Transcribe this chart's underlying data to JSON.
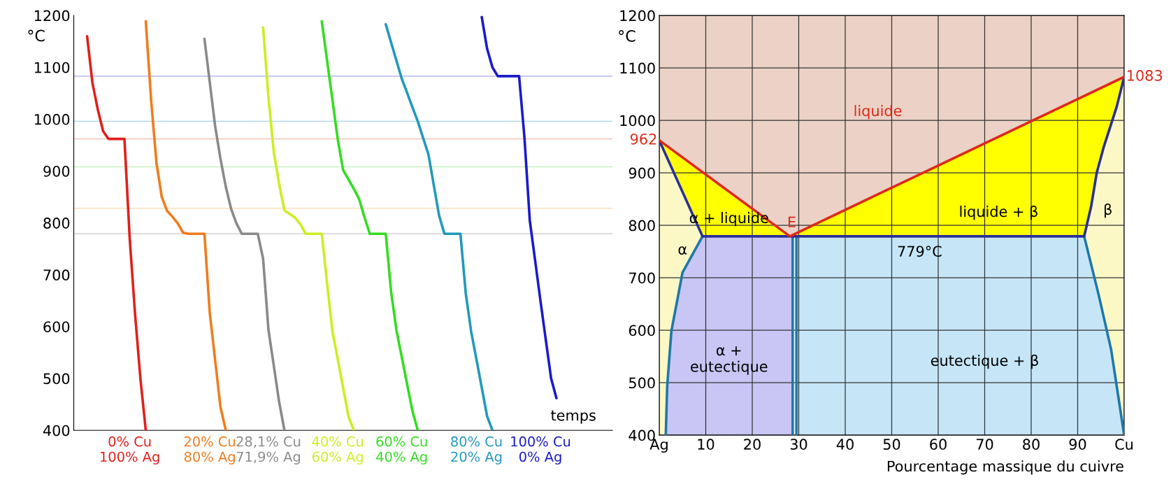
{
  "chart_data": [
    {
      "type": "line",
      "xlabel": "temps",
      "ylabel": "°C",
      "ylim": [
        400,
        1200
      ],
      "grid": false,
      "categories": [
        null,
        null,
        null,
        null,
        null,
        null,
        null,
        null,
        null,
        null,
        null,
        null,
        null,
        null,
        null,
        null,
        null,
        null,
        null,
        null,
        null,
        null,
        null,
        null,
        null,
        null,
        null,
        null,
        null,
        null,
        null,
        null,
        null,
        null,
        null,
        null,
        null,
        null,
        null,
        null,
        null,
        null,
        null,
        null,
        null,
        null,
        null,
        null,
        null,
        null,
        null,
        null,
        null,
        null,
        null,
        null,
        null,
        null,
        null,
        null,
        null,
        null,
        null,
        null,
        null,
        null,
        null,
        null,
        null,
        null,
        null,
        null,
        null,
        null,
        null,
        null,
        null,
        null,
        null,
        null,
        null,
        null,
        null,
        null,
        null,
        null,
        null,
        null,
        null,
        null,
        null,
        null,
        null,
        null,
        null,
        null,
        null,
        null,
        null,
        null,
        null
      ],
      "yticks": [
        400,
        500,
        600,
        700,
        800,
        900,
        1000,
        1100,
        1200
      ],
      "series": [
        {
          "name": "0% Cu\n100% Ag",
          "color": "#e0201b",
          "values": [
            null,
            null,
            1160,
            1070,
            1019,
            977,
            962,
            962,
            962,
            962,
            768,
            623,
            499,
            400,
            null,
            null,
            null,
            null,
            null,
            null,
            null,
            null,
            null,
            null,
            null,
            null,
            null,
            null,
            null,
            null,
            null,
            null,
            null,
            null,
            null,
            null,
            null,
            null,
            null,
            null,
            null,
            null,
            null,
            null,
            null,
            null,
            null,
            null,
            null,
            null,
            null,
            null,
            null,
            null,
            null,
            null,
            null,
            null,
            null,
            null,
            null,
            null,
            null,
            null,
            null,
            null,
            null,
            null,
            null,
            null,
            null,
            null,
            null,
            null,
            null,
            null,
            null,
            null,
            null,
            null,
            null,
            null,
            null,
            null,
            null,
            null,
            null,
            null,
            null,
            null,
            null,
            null,
            null,
            null,
            null,
            null,
            null,
            null,
            null,
            null,
            null
          ]
        },
        {
          "name": "20% Cu\n80% Ag",
          "color": "#f07c1c",
          "values": [
            null,
            null,
            null,
            null,
            null,
            null,
            null,
            null,
            null,
            null,
            null,
            null,
            null,
            1189,
            1037,
            916,
            850,
            823,
            812,
            799,
            781,
            779,
            779,
            779,
            779,
            626,
            536,
            445,
            400,
            null,
            null,
            null,
            null,
            null,
            null,
            null,
            null,
            null,
            null,
            null,
            null,
            null,
            null,
            null,
            null,
            null,
            null,
            null,
            null,
            null,
            null,
            null,
            null,
            null,
            null,
            null,
            null,
            null,
            null,
            null,
            null,
            null,
            null,
            null,
            null,
            null,
            null,
            null,
            null,
            null,
            null,
            null,
            null,
            null,
            null,
            null,
            null,
            null,
            null,
            null,
            null,
            null,
            null,
            null,
            null,
            null,
            null,
            null,
            null,
            null,
            null,
            null,
            null,
            null,
            null,
            null,
            null,
            null,
            null,
            null,
            null
          ]
        },
        {
          "name": "28,1% Cu\n71,9% Ag",
          "color": "#8a8a8a",
          "values": [
            null,
            null,
            null,
            null,
            null,
            null,
            null,
            null,
            null,
            null,
            null,
            null,
            null,
            null,
            null,
            null,
            null,
            null,
            null,
            null,
            null,
            null,
            null,
            null,
            1155,
            1071,
            987,
            924,
            870,
            827,
            799,
            779,
            779,
            779,
            779,
            731,
            594,
            525,
            455,
            400,
            null,
            null,
            null,
            null,
            null,
            null,
            null,
            null,
            null,
            null,
            null,
            null,
            null,
            null,
            null,
            null,
            null,
            null,
            null,
            null,
            null,
            null,
            null,
            null,
            null,
            null,
            null,
            null,
            null,
            null,
            null,
            null,
            null,
            null,
            null,
            null,
            null,
            null,
            null,
            null,
            null,
            null,
            null,
            null,
            null,
            null,
            null,
            null,
            null,
            null,
            null,
            null,
            null,
            null,
            null,
            null,
            null,
            null,
            null,
            null,
            null
          ]
        },
        {
          "name": "40% Cu\n60% Ag",
          "color": "#ccee22",
          "values": [
            null,
            null,
            null,
            null,
            null,
            null,
            null,
            null,
            null,
            null,
            null,
            null,
            null,
            null,
            null,
            null,
            null,
            null,
            null,
            null,
            null,
            null,
            null,
            null,
            null,
            null,
            null,
            null,
            null,
            null,
            null,
            null,
            null,
            null,
            null,
            1177,
            1042,
            937,
            875,
            824,
            817,
            810,
            797,
            779,
            779,
            779,
            779,
            683,
            591,
            537,
            482,
            427,
            400,
            null,
            null,
            null,
            null,
            null,
            null,
            null,
            null,
            null,
            null,
            null,
            null,
            null,
            null,
            null,
            null,
            null,
            null,
            null,
            null,
            null,
            null,
            null,
            null,
            null,
            null,
            null,
            null,
            null,
            null,
            null,
            null,
            null,
            null,
            null,
            null,
            null,
            null,
            null,
            null,
            null,
            null,
            null,
            null,
            null,
            null,
            null,
            null
          ]
        },
        {
          "name": "60% Cu\n40% Ag",
          "color": "#33dd22",
          "values": [
            null,
            null,
            null,
            null,
            null,
            null,
            null,
            null,
            null,
            null,
            null,
            null,
            null,
            null,
            null,
            null,
            null,
            null,
            null,
            null,
            null,
            null,
            null,
            null,
            null,
            null,
            null,
            null,
            null,
            null,
            null,
            null,
            null,
            null,
            null,
            null,
            null,
            null,
            null,
            null,
            null,
            null,
            null,
            null,
            null,
            null,
            1189,
            1113,
            1037,
            961,
            902,
            884,
            866,
            846,
            811,
            779,
            779,
            779,
            779,
            667,
            593,
            541,
            489,
            437,
            400,
            null,
            null,
            null,
            null,
            null,
            null,
            null,
            null,
            null,
            null,
            null,
            null,
            null,
            null,
            null,
            null,
            null,
            null,
            null,
            null,
            null,
            null,
            null,
            null,
            null,
            null,
            null,
            null,
            null,
            null,
            null,
            null,
            null,
            null,
            null,
            null
          ]
        },
        {
          "name": "80% Cu\n20% Ag",
          "color": "#2299bb",
          "values": [
            null,
            null,
            null,
            null,
            null,
            null,
            null,
            null,
            null,
            null,
            null,
            null,
            null,
            null,
            null,
            null,
            null,
            null,
            null,
            null,
            null,
            null,
            null,
            null,
            null,
            null,
            null,
            null,
            null,
            null,
            null,
            null,
            null,
            null,
            null,
            null,
            null,
            null,
            null,
            null,
            null,
            null,
            null,
            null,
            null,
            null,
            null,
            null,
            null,
            null,
            null,
            null,
            null,
            null,
            null,
            null,
            null,
            null,
            1183,
            1148,
            1113,
            1078,
            1051,
            1023,
            996,
            964,
            932,
            873,
            814,
            779,
            779,
            779,
            779,
            664,
            591,
            537,
            482,
            427,
            400,
            null,
            null,
            null,
            null,
            null,
            null,
            null,
            null,
            null,
            null,
            null,
            null,
            null,
            null,
            null,
            null,
            null,
            null,
            null,
            null,
            null,
            null
          ]
        },
        {
          "name": "100% Cu\n0% Ag",
          "color": "#1a1acc",
          "values": [
            null,
            null,
            null,
            null,
            null,
            null,
            null,
            null,
            null,
            null,
            null,
            null,
            null,
            null,
            null,
            null,
            null,
            null,
            null,
            null,
            null,
            null,
            null,
            null,
            null,
            null,
            null,
            null,
            null,
            null,
            null,
            null,
            null,
            null,
            null,
            null,
            null,
            null,
            null,
            null,
            null,
            null,
            null,
            null,
            null,
            null,
            null,
            null,
            null,
            null,
            null,
            null,
            null,
            null,
            null,
            null,
            null,
            null,
            null,
            null,
            null,
            null,
            null,
            null,
            null,
            null,
            null,
            null,
            null,
            null,
            null,
            null,
            null,
            null,
            null,
            null,
            1197,
            1136,
            1100,
            1083,
            1083,
            1083,
            1083,
            1083,
            965,
            805,
            728,
            650,
            575,
            500,
            462,
            null,
            null,
            null,
            null,
            null,
            null,
            null,
            null,
            null,
            null
          ]
        }
      ],
      "ref_lines": [
        {
          "axis": "y",
          "value": 962,
          "color": "#f2b8b0"
        },
        {
          "axis": "y",
          "value": 828,
          "color": "#f8d8b0"
        },
        {
          "axis": "y",
          "value": 779,
          "color": "#c8c8c8"
        },
        {
          "axis": "y",
          "value": 908,
          "color": "#bfeeb8"
        },
        {
          "axis": "y",
          "value": 996,
          "color": "#a8d4e4"
        },
        {
          "axis": "y",
          "value": 1083,
          "color": "#aaaaee"
        }
      ]
    },
    {
      "type": "line",
      "xlabel": "Pourcentage massique du cuivre",
      "ylabel": "°C",
      "xlim": [
        0,
        100
      ],
      "ylim": [
        400,
        1200
      ],
      "grid": true,
      "xticks": [
        {
          "value": 0,
          "label": "Ag"
        },
        10,
        20,
        30,
        40,
        50,
        60,
        70,
        80,
        90,
        {
          "value": 100,
          "label": "Cu"
        }
      ],
      "yticks": [
        400,
        500,
        600,
        700,
        800,
        900,
        1000,
        1100,
        1200
      ],
      "series": [
        {
          "type": "line",
          "color": "#1f78a8",
          "x": [
            1.4,
            1.7,
            2.6,
            5.0,
            9.3,
            50,
            91.4,
            94.5,
            97.2,
            100
          ],
          "values": [
            400,
            493,
            598,
            710,
            779,
            null,
            779,
            668,
            563,
            400
          ]
        },
        {
          "type": "line",
          "color": "#1f78a8",
          "x": [
            28.7,
            28.7,
            29.1,
            29.5,
            29.5
          ],
          "values": [
            400,
            779,
            null,
            779,
            400
          ]
        },
        {
          "type": "line",
          "color": "#2b2f9a",
          "x": [
            0,
            9.3,
            91.4,
            92.9,
            94.1,
            95.6,
            98.4,
            100
          ],
          "values": [
            962,
            779,
            779,
            836,
            900,
            949,
            1026,
            1083
          ]
        },
        {
          "type": "line",
          "color": "#dd2a1b",
          "x": [
            0,
            28.1,
            100
          ],
          "values": [
            962,
            779,
            1083
          ]
        }
      ],
      "annotations": [
        "liquide",
        "α + liquide",
        "E",
        "liquide + β",
        "β",
        "α",
        "779°C",
        "α +\neutectique",
        "eutectique + β",
        "962",
        "1083"
      ]
    }
  ]
}
